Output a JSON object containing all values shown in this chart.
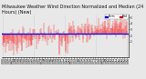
{
  "title": "Milwaukee Weather Wind Direction Normalized and Median (24 Hours) (New)",
  "background_color": "#e8e8e8",
  "plot_bg_color": "#e8e8e8",
  "grid_color": "#aaaaaa",
  "bar_color": "#ff0000",
  "median_color": "#0000ff",
  "legend_norm_color": "#0000cc",
  "legend_med_color": "#cc0000",
  "ylim": [
    -1.5,
    5.5
  ],
  "ytick_vals": [
    1,
    2,
    3,
    4,
    5
  ],
  "median_value": 2.3,
  "n_bars": 288,
  "title_fontsize": 3.5,
  "tick_fontsize": 2.2,
  "bar_linewidth": 0.25
}
